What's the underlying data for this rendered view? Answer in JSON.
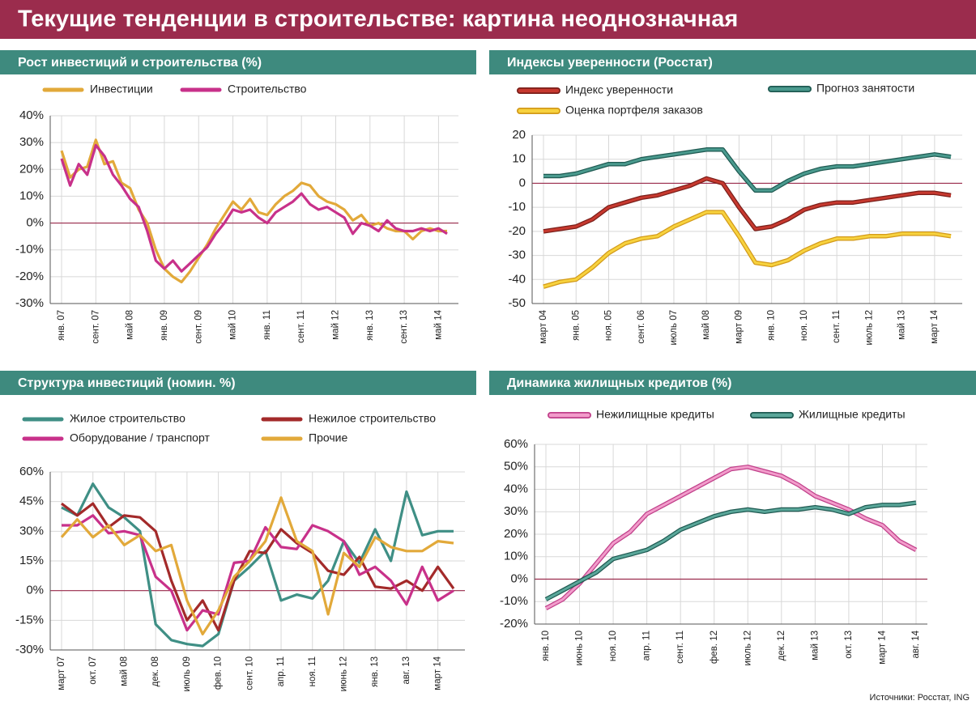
{
  "title": "Текущие тенденции в строительстве: картина неоднозначная",
  "source": "Источники: Росстат, ING",
  "chart_data": [
    {
      "type": "line",
      "title": "Рост инвестиций и строительства  (%)",
      "categories": [
        "янв. 07",
        null,
        null,
        null,
        "сент. 07",
        null,
        null,
        null,
        "май 08",
        null,
        null,
        null,
        "янв. 09",
        null,
        null,
        null,
        "сент. 09",
        null,
        null,
        null,
        "май 10",
        null,
        null,
        null,
        "янв. 11",
        null,
        null,
        null,
        "сент. 11",
        null,
        null,
        null,
        "май 12",
        null,
        null,
        null,
        "янв. 13",
        null,
        null,
        null,
        "сент. 13",
        null,
        null,
        null,
        "май 14",
        null
      ],
      "series": [
        {
          "name": "Инвестиции",
          "color": "#e2a93a",
          "values": [
            27,
            17,
            20,
            21,
            31,
            22,
            23,
            15,
            13,
            5,
            0,
            -10,
            -17,
            -20,
            -22,
            -18,
            -13,
            -8,
            -2,
            3,
            8,
            5,
            9,
            4,
            3,
            7,
            10,
            12,
            15,
            14,
            10,
            8,
            7,
            5,
            1,
            3,
            -1,
            0,
            -2,
            -3,
            -3,
            -6,
            -3,
            -2,
            -3,
            -3
          ]
        },
        {
          "name": "Строительство",
          "color": "#c8318a",
          "values": [
            24,
            14,
            22,
            18,
            29,
            25,
            18,
            14,
            9,
            6,
            -3,
            -14,
            -17,
            -14,
            -18,
            -15,
            -12,
            -9,
            -4,
            0,
            5,
            4,
            5,
            2,
            0,
            4,
            6,
            8,
            11,
            7,
            5,
            6,
            4,
            2,
            -4,
            0,
            -1,
            -3,
            1,
            -2,
            -3,
            -3,
            -2,
            -3,
            -2,
            -4
          ]
        }
      ],
      "ylim": [
        -30,
        40
      ],
      "yticks": [
        {
          "value": 40,
          "label": "40%"
        },
        {
          "value": 30,
          "label": "30%"
        },
        {
          "value": 20,
          "label": "20%"
        },
        {
          "value": 10,
          "label": "10%"
        },
        {
          "value": 0,
          "label": "0%"
        },
        {
          "value": -10,
          "label": "-10%"
        },
        {
          "value": -20,
          "label": "-20%"
        },
        {
          "value": -30,
          "label": "-30%"
        }
      ],
      "grid": true
    },
    {
      "type": "line",
      "title": "Индексы уверенности (Росстат)",
      "categories": [
        "март 04",
        null,
        "янв. 05",
        null,
        "ноя. 05",
        null,
        "сент. 06",
        null,
        "июль 07",
        null,
        "май 08",
        null,
        "март 09",
        null,
        "янв. 10",
        null,
        "ноя. 10",
        null,
        "сент. 11",
        null,
        "июль 12",
        null,
        "май 13",
        null,
        "март 14",
        null
      ],
      "series": [
        {
          "name": "Индекс уверенности",
          "color": "#c7392f",
          "outline": "#7a1f1a",
          "values": [
            -20,
            -19,
            -18,
            -15,
            -10,
            -8,
            -6,
            -5,
            -3,
            -1,
            2,
            0,
            -10,
            -19,
            -18,
            -15,
            -11,
            -9,
            -8,
            -8,
            -7,
            -6,
            -5,
            -4,
            -4,
            -5
          ]
        },
        {
          "name": "Прогноз занятости",
          "color": "#4a9a8e",
          "outline": "#1f5a52",
          "values": [
            3,
            3,
            4,
            6,
            8,
            8,
            10,
            11,
            12,
            13,
            14,
            14,
            5,
            -3,
            -3,
            1,
            4,
            6,
            7,
            7,
            8,
            9,
            10,
            11,
            12,
            11
          ]
        },
        {
          "name": "Оценка портфеля заказов",
          "color": "#f7d23e",
          "outline": "#d39a1a",
          "values": [
            -43,
            -41,
            -40,
            -35,
            -29,
            -25,
            -23,
            -22,
            -18,
            -15,
            -12,
            -12,
            -22,
            -33,
            -34,
            -32,
            -28,
            -25,
            -23,
            -23,
            -22,
            -22,
            -21,
            -21,
            -21,
            -22
          ]
        }
      ],
      "ylim": [
        -50,
        20
      ],
      "yticks": [
        20,
        10,
        0,
        -10,
        -20,
        -30,
        -40,
        -50
      ],
      "grid": true
    },
    {
      "type": "line",
      "title": "Структура инвестиций (номин. %)",
      "categories": [
        "март 07",
        null,
        "окт. 07",
        null,
        "май 08",
        null,
        "дек. 08",
        null,
        "июль 09",
        null,
        "фев. 10",
        null,
        "сент. 10",
        null,
        "апр. 11",
        null,
        "ноя. 11",
        null,
        "июнь 12",
        null,
        "янв. 13",
        null,
        "авг. 13",
        null,
        "март 14",
        null
      ],
      "series": [
        {
          "name": "Жилое строительство",
          "color": "#3f8f85",
          "values": [
            42,
            38,
            54,
            42,
            37,
            30,
            -17,
            -25,
            -27,
            -28,
            -22,
            5,
            12,
            20,
            -5,
            -2,
            -4,
            5,
            25,
            14,
            31,
            15,
            50,
            28,
            30,
            30
          ]
        },
        {
          "name": "Нежилое строительство",
          "color": "#a32a2a",
          "values": [
            44,
            38,
            44,
            32,
            38,
            37,
            30,
            5,
            -15,
            -5,
            -20,
            5,
            20,
            19,
            31,
            24,
            19,
            10,
            8,
            17,
            2,
            1,
            5,
            0,
            12,
            1
          ]
        },
        {
          "name": "Оборудование / транспорт",
          "color": "#c8318a",
          "values": [
            33,
            33,
            38,
            29,
            30,
            28,
            7,
            0,
            -20,
            -10,
            -12,
            14,
            15,
            32,
            22,
            21,
            33,
            30,
            25,
            8,
            12,
            5,
            -7,
            12,
            -5,
            0
          ]
        },
        {
          "name": "Прочие",
          "color": "#e2a93a",
          "values": [
            27,
            36,
            27,
            33,
            23,
            28,
            20,
            23,
            -5,
            -22,
            -10,
            7,
            15,
            25,
            47,
            25,
            20,
            -12,
            19,
            12,
            27,
            22,
            20,
            20,
            25,
            24
          ]
        }
      ],
      "ylim": [
        -30,
        60
      ],
      "yticks": [
        {
          "value": 60,
          "label": "60%"
        },
        {
          "value": 45,
          "label": "45%"
        },
        {
          "value": 30,
          "label": "30%"
        },
        {
          "value": 15,
          "label": "15%"
        },
        {
          "value": 0,
          "label": "0%"
        },
        {
          "value": -15,
          "label": "-15%"
        },
        {
          "value": -30,
          "label": "-30%"
        }
      ],
      "grid": true
    },
    {
      "type": "line",
      "title": "Динамика жилищных кредитов (%)",
      "categories": [
        "янв. 10",
        null,
        "июнь 10",
        null,
        "ноя. 10",
        null,
        "апр. 11",
        null,
        "сент. 11",
        null,
        "фев. 12",
        null,
        "июль 12",
        null,
        "дек. 12",
        null,
        "май 13",
        null,
        "окт. 13",
        null,
        "март 14",
        null,
        "авг. 14"
      ],
      "series": [
        {
          "name": "Нежилищные кредиты",
          "color": "#f29ccb",
          "outline": "#c0408a",
          "values": [
            -13,
            -9,
            -2,
            7,
            16,
            21,
            29,
            33,
            37,
            41,
            45,
            49,
            50,
            48,
            46,
            42,
            37,
            34,
            31,
            27,
            24,
            17,
            13
          ]
        },
        {
          "name": "Жилищные кредиты",
          "color": "#5aa79a",
          "outline": "#1f5a52",
          "values": [
            -9,
            -5,
            -1,
            3,
            9,
            11,
            13,
            17,
            22,
            25,
            28,
            30,
            31,
            30,
            31,
            31,
            32,
            31,
            29,
            32,
            33,
            33,
            34
          ]
        }
      ],
      "ylim": [
        -20,
        60
      ],
      "yticks": [
        {
          "value": 60,
          "label": "60%"
        },
        {
          "value": 50,
          "label": "50%"
        },
        {
          "value": 40,
          "label": "40%"
        },
        {
          "value": 30,
          "label": "30%"
        },
        {
          "value": 20,
          "label": "20%"
        },
        {
          "value": 10,
          "label": "10%"
        },
        {
          "value": 0,
          "label": "0%"
        },
        {
          "value": -10,
          "label": "-10%"
        },
        {
          "value": -20,
          "label": "-20%"
        }
      ],
      "grid": true
    }
  ]
}
